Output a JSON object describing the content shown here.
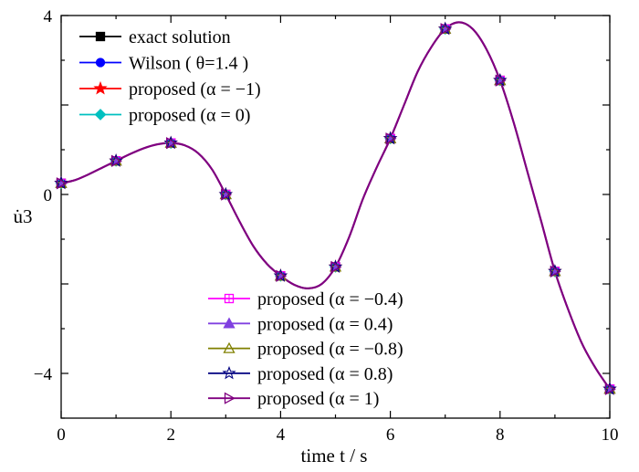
{
  "chart_data": {
    "type": "line",
    "title": "",
    "xlabel": "time t / s",
    "ylabel": "u̇3",
    "xlim": [
      0,
      10
    ],
    "ylim": [
      -5,
      4
    ],
    "xticks": [
      "0",
      "2",
      "4",
      "6",
      "8",
      "10"
    ],
    "yticks": [
      "4",
      "0",
      "−4"
    ],
    "curve": {
      "x": [
        0,
        0.25,
        0.5,
        0.75,
        1,
        1.25,
        1.5,
        1.75,
        2,
        2.25,
        2.5,
        2.75,
        3,
        3.25,
        3.5,
        3.75,
        4,
        4.25,
        4.5,
        4.75,
        5,
        5.25,
        5.5,
        5.75,
        6,
        6.25,
        6.5,
        6.75,
        7,
        7.25,
        7.5,
        7.75,
        8,
        8.25,
        8.5,
        8.75,
        9,
        9.25,
        9.5,
        9.75,
        10
      ],
      "y": [
        0.25,
        0.32,
        0.45,
        0.6,
        0.75,
        0.9,
        1.03,
        1.12,
        1.15,
        1.1,
        0.92,
        0.56,
        0.0,
        -0.6,
        -1.15,
        -1.55,
        -1.82,
        -2.02,
        -2.1,
        -2.0,
        -1.62,
        -0.95,
        -0.1,
        0.6,
        1.25,
        2.0,
        2.75,
        3.3,
        3.7,
        3.85,
        3.7,
        3.25,
        2.55,
        1.6,
        0.5,
        -0.6,
        -1.72,
        -2.6,
        -3.35,
        -3.9,
        -4.35
      ]
    },
    "sample_points": {
      "x": [
        0,
        1,
        2,
        3,
        4,
        5,
        6,
        7,
        8,
        9,
        10
      ],
      "y": [
        0.25,
        0.75,
        1.15,
        0.0,
        -1.82,
        -1.62,
        1.25,
        3.7,
        2.55,
        -1.72,
        -4.35
      ]
    },
    "series": [
      {
        "name": "exact solution",
        "color": "#000000",
        "marker": "square-filled"
      },
      {
        "name": "Wilson ( θ=1.4 )",
        "color": "#0000ff",
        "marker": "circle-filled"
      },
      {
        "name": "proposed (α = −1)",
        "color": "#ff0000",
        "marker": "star-filled"
      },
      {
        "name": "proposed (α = 0)",
        "color": "#00c0c0",
        "marker": "diamond-filled"
      },
      {
        "name": "proposed (α = −0.4)",
        "color": "#ff00ff",
        "marker": "square-crossed"
      },
      {
        "name": "proposed (α = 0.4)",
        "color": "#8040e0",
        "marker": "triangle-filled"
      },
      {
        "name": "proposed (α = −0.8)",
        "color": "#808000",
        "marker": "triangle-open"
      },
      {
        "name": "proposed (α = 0.8)",
        "color": "#000080",
        "marker": "star-open"
      },
      {
        "name": "proposed (α = 1)",
        "color": "#800080",
        "marker": "triangle-right-open"
      }
    ],
    "legend": {
      "placement": [
        "top-left",
        "bottom-center"
      ]
    },
    "grid": false
  }
}
